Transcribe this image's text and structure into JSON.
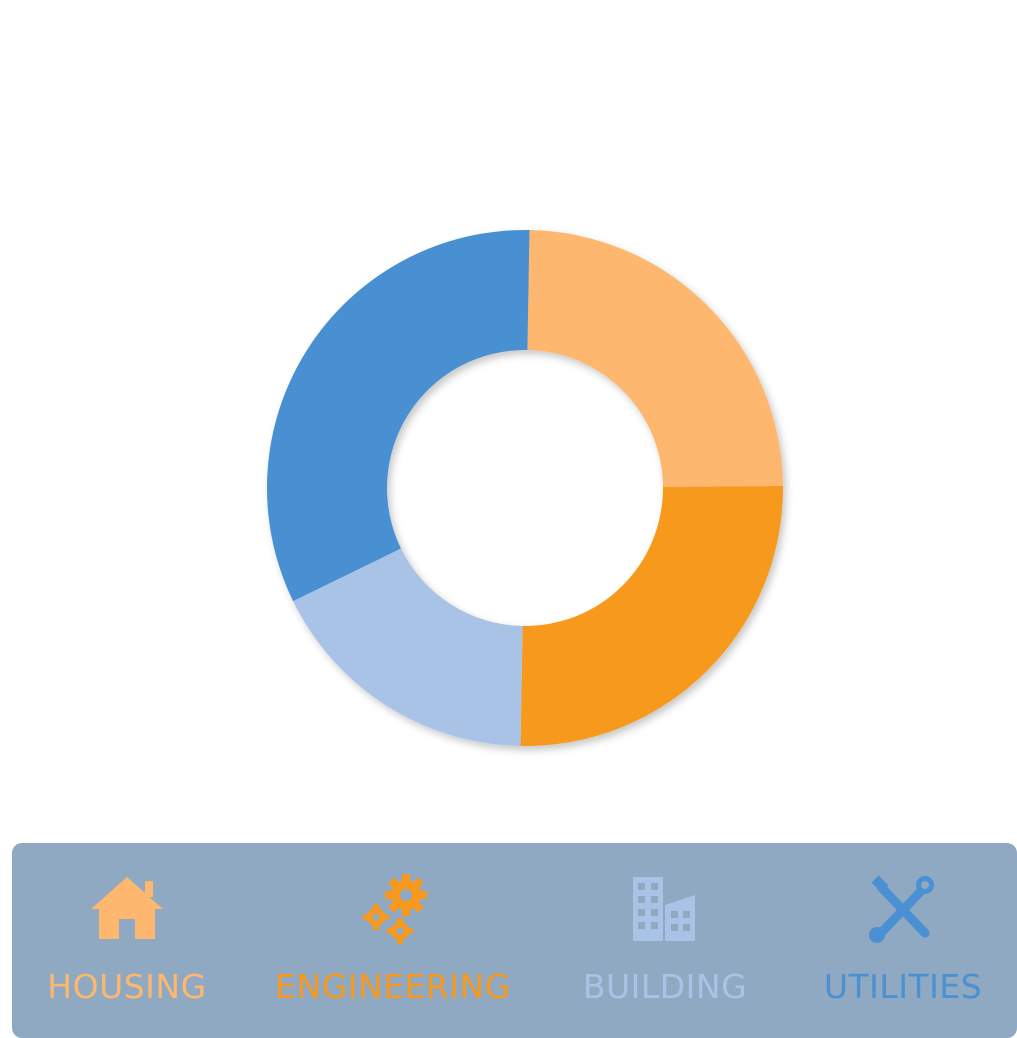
{
  "chart_data": {
    "type": "pie",
    "style": "donut",
    "categories": [
      "HOUSING",
      "ENGINEERING",
      "BUILDING",
      "UTILITIES"
    ],
    "values": [
      24.6,
      25.4,
      17.5,
      32.5
    ],
    "colors": [
      "#fdb76e",
      "#f7991f",
      "#a9c3e7",
      "#4a90d2"
    ],
    "start_angle_deg": 1,
    "legend_placement": "bottom",
    "title": ""
  },
  "legend": {
    "items": [
      {
        "label": "HOUSING",
        "icon": "house-icon",
        "color": "#fdb76e"
      },
      {
        "label": "ENGINEERING",
        "icon": "gears-icon",
        "color": "#f7991f"
      },
      {
        "label": "BUILDING",
        "icon": "building-icon",
        "color": "#a9c3e7"
      },
      {
        "label": "UTILITIES",
        "icon": "tools-icon",
        "color": "#4a90d2"
      }
    ]
  }
}
